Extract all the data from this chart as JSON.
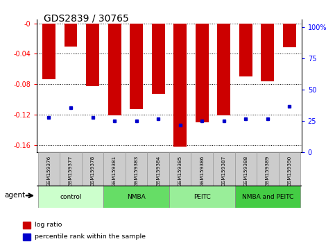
{
  "title": "GDS2839 / 30765",
  "samples": [
    "GSM159376",
    "GSM159377",
    "GSM159378",
    "GSM159381",
    "GSM159383",
    "GSM159384",
    "GSM159385",
    "GSM159386",
    "GSM159387",
    "GSM159388",
    "GSM159389",
    "GSM159390"
  ],
  "log_ratio": [
    -0.073,
    -0.03,
    -0.083,
    -0.121,
    -0.113,
    -0.093,
    -0.162,
    -0.13,
    -0.121,
    -0.07,
    -0.076,
    -0.031
  ],
  "percentile_rank": [
    28,
    36,
    28,
    25,
    25,
    27,
    22,
    25,
    25,
    27,
    27,
    37
  ],
  "groups": [
    {
      "label": "control",
      "start": 0,
      "end": 3,
      "color": "#ccffcc"
    },
    {
      "label": "NMBA",
      "start": 3,
      "end": 6,
      "color": "#66dd66"
    },
    {
      "label": "PEITC",
      "start": 6,
      "end": 9,
      "color": "#99ee99"
    },
    {
      "label": "NMBA and PEITC",
      "start": 9,
      "end": 12,
      "color": "#44cc44"
    }
  ],
  "ylim_left": [
    -0.17,
    0.005
  ],
  "ylim_right": [
    0,
    106
  ],
  "left_ticks": [
    0.0,
    -0.04,
    -0.08,
    -0.12,
    -0.16
  ],
  "left_tick_labels": [
    "-0",
    "-0.04",
    "-0.08",
    "-0.12",
    "-0.16"
  ],
  "right_ticks": [
    0,
    25,
    50,
    75,
    100
  ],
  "right_tick_labels": [
    "0",
    "25",
    "50",
    "75",
    "100%"
  ],
  "bar_color": "#cc0000",
  "dot_color": "#0000cc",
  "bar_width": 0.6,
  "background_plot": "#ffffff",
  "background_xtick": "#cccccc",
  "agent_label": "agent",
  "legend_items": [
    {
      "label": "log ratio",
      "color": "#cc0000"
    },
    {
      "label": "percentile rank within the sample",
      "color": "#0000cc"
    }
  ]
}
